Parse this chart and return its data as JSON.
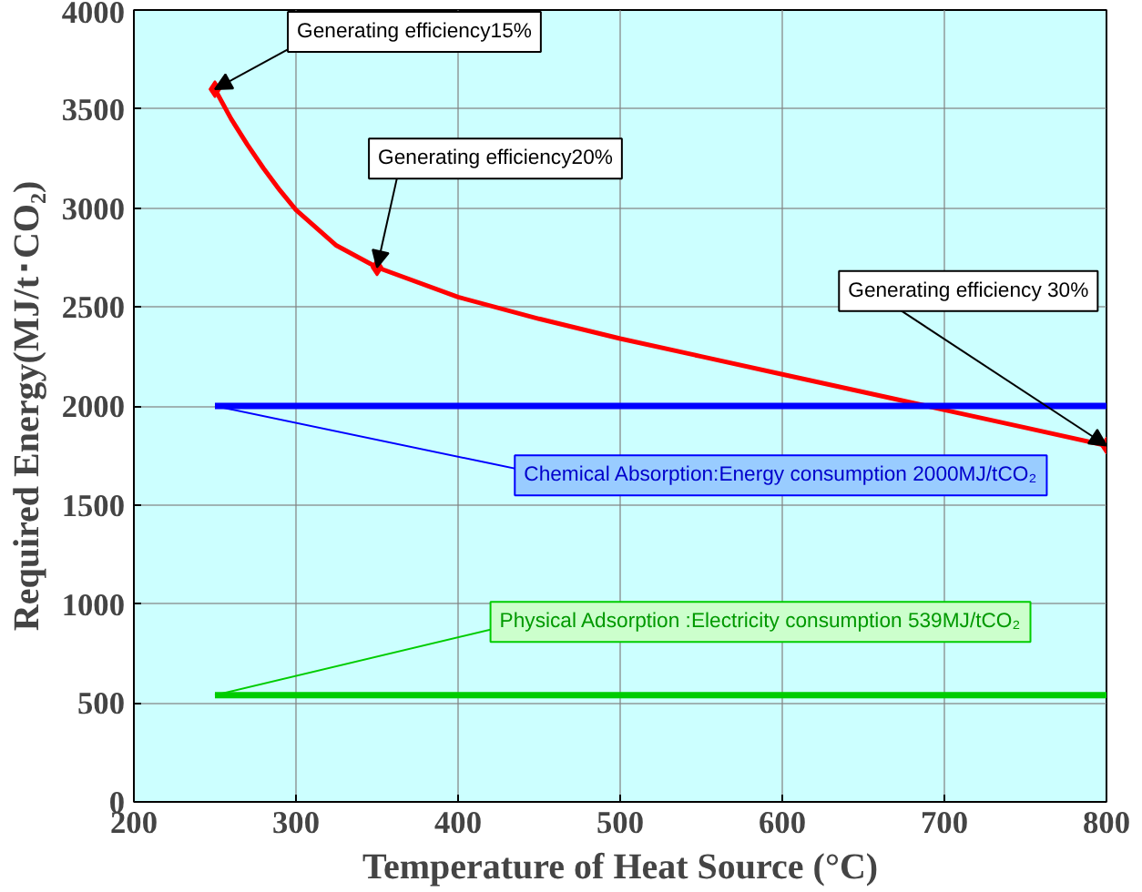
{
  "chart_data": {
    "type": "line",
    "xlabel": "Temperature of Heat Source (°C)",
    "ylabel": "Required Energy(MJ/t･CO₂)",
    "xlim": [
      200,
      800
    ],
    "ylim": [
      0,
      4000
    ],
    "xticks": [
      200,
      300,
      400,
      500,
      600,
      700,
      800
    ],
    "yticks": [
      0,
      500,
      1000,
      1500,
      2000,
      2500,
      3000,
      3500,
      4000
    ],
    "grid": true,
    "line_style": "solid",
    "series": [
      {
        "color": "#ff0000",
        "x": [
          250,
          260,
          270,
          280,
          290,
          300,
          325,
          350,
          400,
          450,
          500,
          550,
          600,
          650,
          700,
          750,
          800
        ],
        "values": [
          3600,
          3450,
          3320,
          3200,
          3090,
          2990,
          2810,
          2700,
          2550,
          2440,
          2340,
          2250,
          2160,
          2070,
          1980,
          1890,
          1800
        ]
      },
      {
        "type": "scatter",
        "marker": "diamond",
        "color": "#ff0000",
        "x": [
          250,
          350,
          800
        ],
        "values": [
          3600,
          2700,
          1800
        ]
      },
      {
        "color": "#0000ff",
        "x": [
          250,
          800
        ],
        "values": [
          2000,
          2000
        ]
      },
      {
        "color": "#00cc00",
        "x": [
          250,
          800
        ],
        "values": [
          539,
          539
        ]
      }
    ],
    "annotations": [
      {
        "text": "Generating efficiency15%",
        "x": 250,
        "y": 3600
      },
      {
        "text": "Generating efficiency20%",
        "x": 350,
        "y": 2700
      },
      {
        "text": "Generating efficiency 30%",
        "x": 800,
        "y": 1800
      },
      {
        "text": "Chemical Absorption:Energy consumption 2000MJ/tCO₂",
        "x": 250,
        "y": 2000
      },
      {
        "text": "Physical Adsorption :Electricity consumption 539MJ/tCO₂",
        "x": 250,
        "y": 539
      }
    ]
  }
}
